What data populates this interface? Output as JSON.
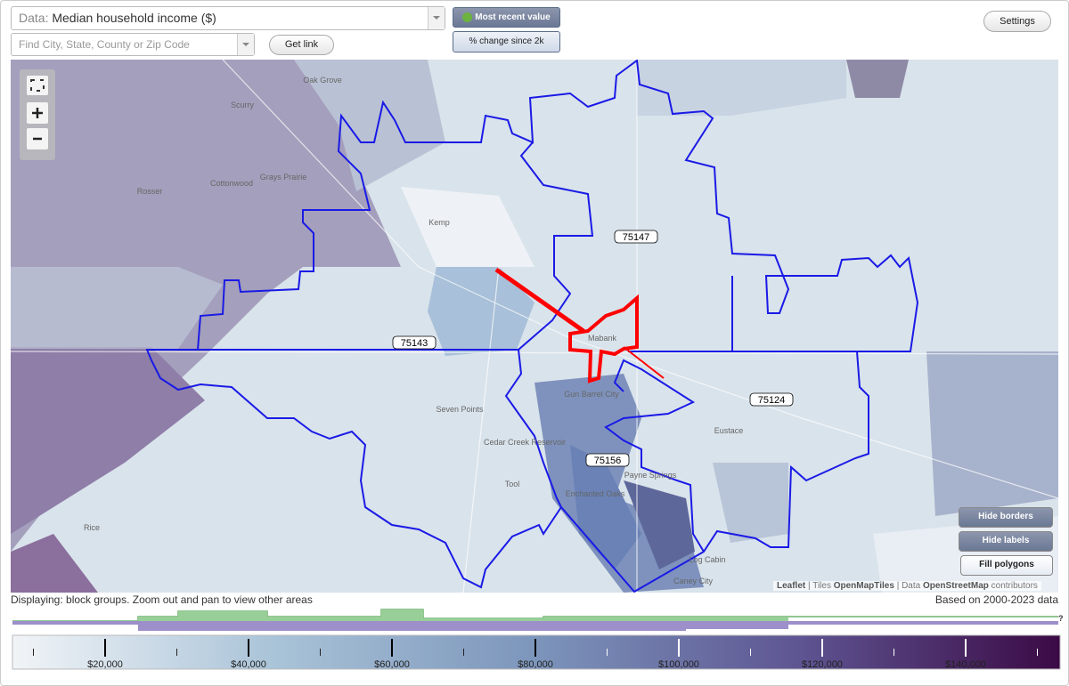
{
  "toolbar": {
    "data_label": "Data:",
    "data_value": "Median household income ($)",
    "search_placeholder": "Find City, State, County or Zip Code",
    "get_link": "Get link",
    "most_recent": "Most recent value",
    "pct_change": "% change since 2k",
    "settings": "Settings"
  },
  "map": {
    "places": [
      "Oak Grove",
      "Scurry",
      "Grays Prairie",
      "Cottonwood",
      "Rosser",
      "Kemp",
      "Mabank",
      "Gun Barrel City",
      "Seven Points",
      "Cedar Creek Reservoir",
      "Tool",
      "Enchanted Oaks",
      "Payne Springs",
      "Eustace",
      "Log Cabin",
      "Caney City",
      "Rice"
    ],
    "zips": [
      "75147",
      "75143",
      "75124",
      "75156"
    ],
    "buttons": [
      "Hide borders",
      "Hide labels",
      "Fill polygons"
    ],
    "attribution": [
      "Leaflet",
      "| Tiles",
      "OpenMapTiles",
      "| Data",
      "OpenStreetMap",
      "contributors"
    ]
  },
  "status": {
    "left": "Displaying: block groups. Zoom out and pan to view other areas",
    "right": "Based on 2000-2023 data"
  },
  "legend": {
    "ticks": [
      "$20,000",
      "$40,000",
      "$60,000",
      "$80,000",
      "$100,000",
      "$120,000",
      "$140,000"
    ],
    "help": "?"
  }
}
